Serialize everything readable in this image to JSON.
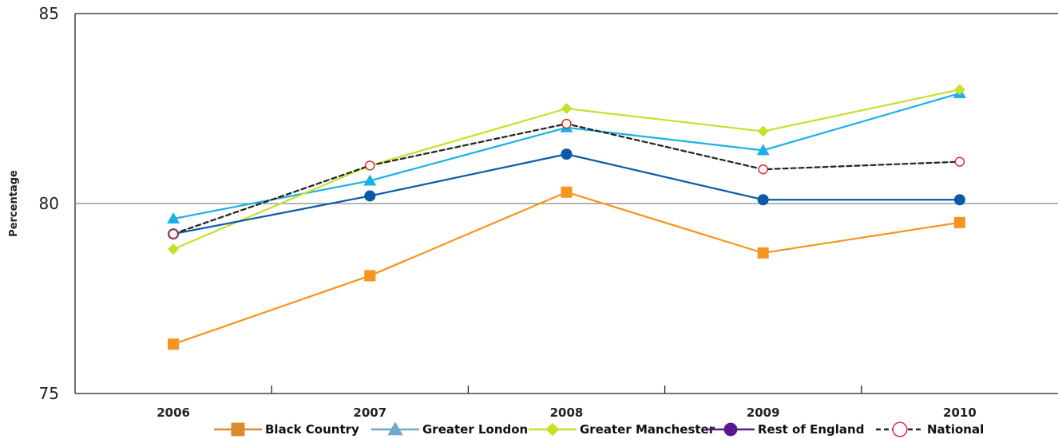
{
  "chart_data": {
    "type": "line",
    "title": "",
    "xlabel": "",
    "ylabel": "Percentage",
    "categories": [
      "2006",
      "2007",
      "2008",
      "2009",
      "2010"
    ],
    "ylim": [
      75,
      85
    ],
    "y_ticks": [
      "75",
      "80",
      "85"
    ],
    "reference_line": 80,
    "grid": false,
    "legend_position": "bottom",
    "series": [
      {
        "name": "Black Country",
        "values": [
          76.3,
          78.1,
          80.3,
          78.7,
          79.5
        ],
        "color": "#F7941D",
        "legend_color": "#D98C2B",
        "marker": "square",
        "dash": "solid"
      },
      {
        "name": "Greater London",
        "values": [
          79.6,
          80.6,
          82.0,
          81.4,
          82.9
        ],
        "color": "#1BB0E6",
        "legend_color": "#6FA8C8",
        "marker": "triangle",
        "dash": "solid"
      },
      {
        "name": "Greater Manchester",
        "values": [
          78.8,
          81.0,
          82.5,
          81.9,
          83.0
        ],
        "color": "#C8E02A",
        "legend_color": "#C8E02A",
        "marker": "diamond",
        "dash": "solid"
      },
      {
        "name": "Rest of England",
        "values": [
          79.2,
          80.2,
          81.3,
          80.1,
          80.1
        ],
        "color": "#0B5AA6",
        "legend_color": "#5B1A8C",
        "marker": "circle",
        "dash": "solid"
      },
      {
        "name": "National",
        "values": [
          79.2,
          81.0,
          82.1,
          80.9,
          81.1
        ],
        "color": "#222222",
        "legend_color": "#222222",
        "marker_color": "#E41E26",
        "marker": "open-circle",
        "dash": "dashed"
      }
    ]
  }
}
